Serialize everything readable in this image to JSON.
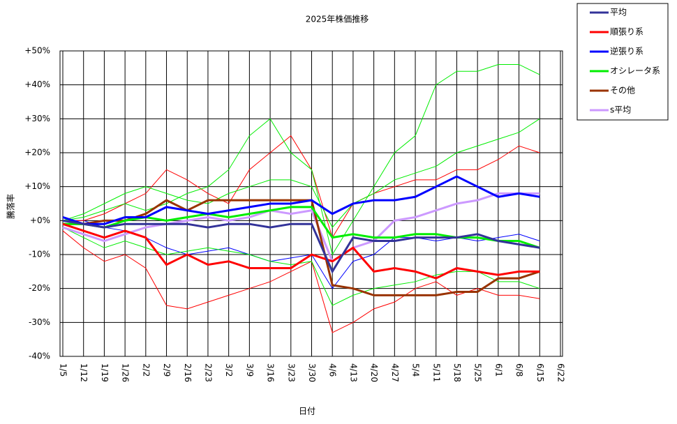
{
  "chart_data": {
    "type": "line",
    "title": "2025年株価推移",
    "x_label": "日付",
    "y_label": "騰落率",
    "categories": [
      "1/5",
      "1/12",
      "1/19",
      "1/26",
      "2/2",
      "2/9",
      "2/16",
      "2/23",
      "3/2",
      "3/9",
      "3/16",
      "3/23",
      "3/30",
      "4/6",
      "4/13",
      "4/20",
      "4/27",
      "5/4",
      "5/11",
      "5/18",
      "5/25",
      "6/1",
      "6/8",
      "6/15",
      "6/22"
    ],
    "ylim": [
      -40,
      50
    ],
    "yticks": [
      {
        "value": -40,
        "label": "-40%"
      },
      {
        "value": -30,
        "label": "-30%"
      },
      {
        "value": -20,
        "label": "-20%"
      },
      {
        "value": -10,
        "label": "-10%"
      },
      {
        "value": 0,
        "label": "+0%"
      },
      {
        "value": 10,
        "label": "+10%"
      },
      {
        "value": 20,
        "label": "+20%"
      },
      {
        "value": 30,
        "label": "+30%"
      },
      {
        "value": 40,
        "label": "+40%"
      },
      {
        "value": 50,
        "label": "+50%"
      }
    ],
    "grid": true,
    "series": [
      {
        "name": "平均",
        "color": "#333399",
        "values": [
          0,
          -1,
          -2,
          -1,
          -1,
          -1,
          -1,
          -2,
          -1,
          -1,
          -2,
          -1,
          -1,
          -15,
          -5,
          -6,
          -6,
          -5,
          -5,
          -5,
          -4,
          -6,
          -7,
          -8,
          null
        ]
      },
      {
        "name": "順張り系",
        "color": "#ff0000",
        "values": [
          -1,
          -3,
          -5,
          -3,
          -5,
          -13,
          -10,
          -13,
          -12,
          -14,
          -14,
          -14,
          -10,
          -12,
          -8,
          -15,
          -14,
          -15,
          -17,
          -14,
          -15,
          -16,
          -15,
          -15,
          null
        ]
      },
      {
        "name": "逆張り系",
        "color": "#0000ff",
        "values": [
          1,
          -1,
          -1,
          1,
          1,
          4,
          3,
          2,
          3,
          4,
          5,
          5,
          6,
          2,
          5,
          6,
          6,
          7,
          10,
          13,
          10,
          7,
          8,
          7,
          null
        ]
      },
      {
        "name": "オシレータ系",
        "color": "#00ee00",
        "values": [
          -1,
          -1,
          -2,
          0,
          1,
          0,
          1,
          2,
          1,
          2,
          3,
          4,
          4,
          -5,
          -4,
          -5,
          -5,
          -4,
          -4,
          -5,
          -5,
          -6,
          -6,
          -8,
          null
        ]
      },
      {
        "name": "その他",
        "color": "#993300",
        "values": [
          -1,
          -1,
          0,
          0,
          2,
          6,
          3,
          6,
          6,
          6,
          6,
          6,
          6,
          -19,
          -20,
          -22,
          -22,
          -22,
          -22,
          -21,
          -21,
          -17,
          -17,
          -15,
          null
        ]
      },
      {
        "name": "s平均",
        "color": "#cc99ff",
        "values": [
          -2,
          -4,
          -6,
          -4,
          -2,
          -1,
          0,
          1,
          0,
          1,
          3,
          2,
          3,
          -12,
          -8,
          -6,
          0,
          1,
          3,
          5,
          6,
          8,
          8,
          8,
          null
        ]
      },
      {
        "color": "#00ee00",
        "values": [
          0,
          1,
          3,
          5,
          3,
          5,
          8,
          10,
          15,
          25,
          30,
          20,
          15,
          -10,
          0,
          10,
          20,
          25,
          40,
          44,
          44,
          46,
          46,
          43,
          null
        ]
      },
      {
        "color": "#00ee00",
        "values": [
          0,
          2,
          5,
          8,
          10,
          8,
          6,
          5,
          8,
          10,
          12,
          12,
          10,
          -2,
          5,
          8,
          12,
          14,
          16,
          20,
          22,
          24,
          26,
          30,
          null
        ]
      },
      {
        "color": "#00ee00",
        "values": [
          -2,
          -5,
          -8,
          -6,
          -8,
          -10,
          -9,
          -8,
          -9,
          -10,
          -12,
          -13,
          -12,
          -25,
          -22,
          -20,
          -19,
          -18,
          -16,
          -15,
          -15,
          -18,
          -18,
          -20,
          null
        ]
      },
      {
        "color": "#ff0000",
        "values": [
          -3,
          -8,
          -12,
          -10,
          -14,
          -25,
          -26,
          -24,
          -22,
          -20,
          -18,
          -15,
          -12,
          -33,
          -30,
          -26,
          -24,
          -20,
          -18,
          -22,
          -20,
          -22,
          -22,
          -23,
          null
        ]
      },
      {
        "color": "#ff0000",
        "values": [
          0,
          0,
          2,
          5,
          8,
          15,
          12,
          8,
          5,
          15,
          20,
          25,
          15,
          -5,
          5,
          8,
          10,
          12,
          12,
          15,
          15,
          18,
          22,
          20,
          null
        ]
      },
      {
        "color": "#0000ff",
        "values": [
          0,
          0,
          -2,
          -3,
          -5,
          -8,
          -10,
          -9,
          -8,
          -10,
          -12,
          -11,
          -10,
          -20,
          -12,
          -10,
          -5,
          -5,
          -6,
          -5,
          -6,
          -5,
          -4,
          -6,
          null
        ]
      }
    ]
  }
}
